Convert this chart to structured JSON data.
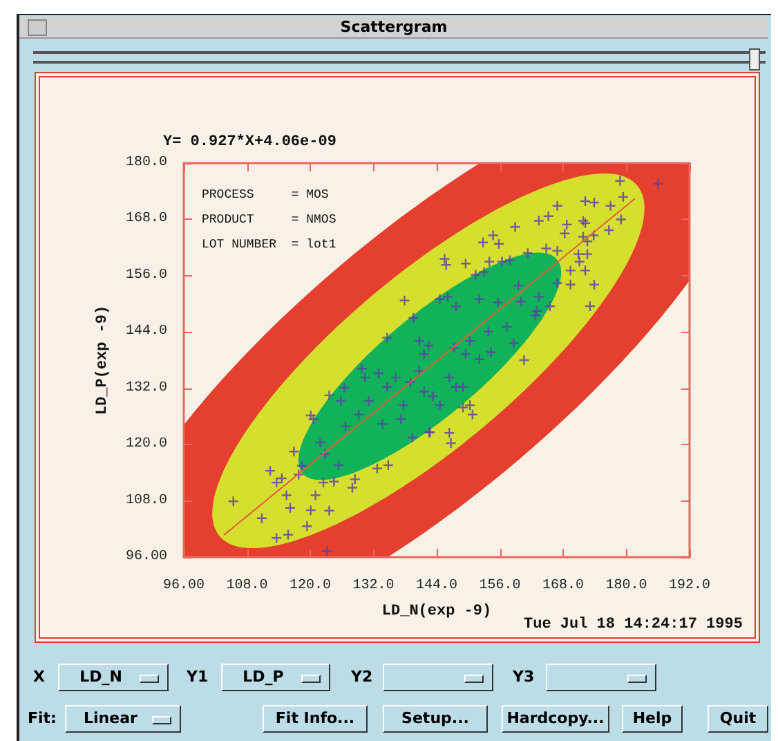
{
  "chart_data": {
    "type": "scatter",
    "title": "Scattergram",
    "xlabel": "LD_N(exp -9)",
    "ylabel": "LD_P(exp -9)",
    "xlim": [
      96,
      192
    ],
    "ylim": [
      96,
      180
    ],
    "xticks": [
      {
        "value": 96,
        "label": "96.00"
      },
      {
        "value": 108,
        "label": "108.0"
      },
      {
        "value": 120,
        "label": "120.0"
      },
      {
        "value": 132,
        "label": "132.0"
      },
      {
        "value": 144,
        "label": "144.0"
      },
      {
        "value": 156,
        "label": "156.0"
      },
      {
        "value": 168,
        "label": "168.0"
      },
      {
        "value": 180,
        "label": "180.0"
      },
      {
        "value": 192,
        "label": "192.0"
      }
    ],
    "yticks": [
      {
        "value": 96,
        "label": "96.00"
      },
      {
        "value": 108,
        "label": "108.0"
      },
      {
        "value": 120,
        "label": "120.0"
      },
      {
        "value": 132,
        "label": "132.0"
      },
      {
        "value": 144,
        "label": "144.0"
      },
      {
        "value": 156,
        "label": "156.0"
      },
      {
        "value": 168,
        "label": "168.0"
      },
      {
        "value": 180,
        "label": "180.0"
      }
    ],
    "grid": false,
    "marker": "cross",
    "series": [
      {
        "color": "#5a3fa8",
        "x": [
          105.4,
          110.8,
          113.6,
          115.8,
          116.2,
          115.5,
          113.6,
          112.4,
          114.6,
          116.9,
          118.4,
          117.8,
          119.4,
          120.1,
          121,
          123.6,
          123.2,
          120.1,
          120.6,
          121.9,
          122.8,
          123.6,
          125.8,
          126.5,
          126.7,
          125.4,
          128.5,
          128,
          124.5,
          122.5,
          129.2,
          129.8,
          130.4,
          132.7,
          134.8,
          134.6,
          134.6,
          133,
          136.2,
          137.7,
          139.4,
          140.7,
          142.5,
          142.7,
          141.6,
          133.7,
          137.2,
          144.6,
          139,
          131.1,
          186,
          178.8,
          179.4,
          177,
          173.9,
          172.2,
          166.9,
          179,
          176.7,
          171.8,
          172.2,
          165.2,
          163.4,
          158.9,
          168.7,
          168.3,
          173.8,
          171.8,
          172.6,
          154.7,
          152.8,
          155.8,
          166.9,
          164.8,
          161.3,
          170.9,
          172.6,
          169.4,
          172.2,
          171.1,
          145.5,
          145.8,
          149.5,
          154,
          156.4,
          151.4,
          153,
          157.9,
          166.9,
          169.4,
          173.9,
          173.1,
          144.6,
          146.1,
          147.7,
          152.1,
          155.6,
          159.5,
          160,
          163.4,
          165.5,
          162.7,
          163,
          160.6,
          149.5,
          154.3,
          158.6,
          157.3,
          141.6,
          140.7,
          146.4,
          143.3,
          147.7,
          149,
          150.3,
          149,
          153.8,
          150.3,
          147.3,
          152.1,
          150.8,
          146.4,
          146.7,
          142.6,
          139.6,
          137.9
        ],
        "values": [
          107.9,
          104.3,
          100.1,
          100.8,
          106.5,
          109.2,
          111.9,
          114.4,
          112.8,
          118.5,
          115.5,
          113.6,
          102.6,
          106,
          109.2,
          105.9,
          97.3,
          126.2,
          125.4,
          120.5,
          118,
          130.5,
          129.3,
          132.1,
          123.9,
          115.6,
          112.6,
          110.8,
          112.1,
          111.9,
          126.4,
          136.2,
          134.3,
          114.9,
          115.6,
          142.8,
          132.3,
          135.2,
          134.3,
          128.4,
          121.5,
          142.1,
          141.1,
          122.6,
          131.3,
          124.4,
          125.4,
          128.4,
          133.3,
          129.3,
          175.6,
          176.2,
          172.8,
          170.9,
          171.6,
          171.9,
          170.9,
          168,
          165.7,
          167.7,
          167.2,
          168.7,
          167.7,
          166.4,
          166.9,
          165,
          164.6,
          164.3,
          163.3,
          164.6,
          163.1,
          162.8,
          161.3,
          161.8,
          160.8,
          160.6,
          160.6,
          157.1,
          157.1,
          159,
          159.6,
          158.3,
          158.6,
          159,
          159,
          156.2,
          156.8,
          159.3,
          154.4,
          154.1,
          154.1,
          149.5,
          151,
          151.5,
          149.5,
          151,
          150.3,
          153.9,
          150.5,
          151.5,
          149.5,
          147.5,
          148.5,
          138,
          139.3,
          139.7,
          141.6,
          145.1,
          139.3,
          135.7,
          134.3,
          130.3,
          132.3,
          127.9,
          128.4,
          132.3,
          144.1,
          142.1,
          140.6,
          138.2,
          126.4,
          122.5,
          120.3,
          122.6,
          147,
          150.7
        ]
      },
      {
        "type": "line",
        "color": "#e0603a",
        "marker": "none",
        "x": [
          103.6,
          181.6
        ],
        "values": [
          100.7,
          172.4
        ]
      }
    ],
    "annotations": [
      "Y= 0.927*X+4.06e-09",
      "PROCESS     = MOS",
      "PRODUCT     = NMOS",
      "LOT NUMBER  = lot1",
      "Tue Jul 18 14:24:17 1995",
      "X",
      "LD_N",
      "Y1",
      "LD_P",
      "Y2",
      "Y3",
      "Fit:",
      "Linear",
      "Fit Info...",
      "Setup...",
      "Hardcopy...",
      "Help",
      "Quit"
    ]
  }
}
